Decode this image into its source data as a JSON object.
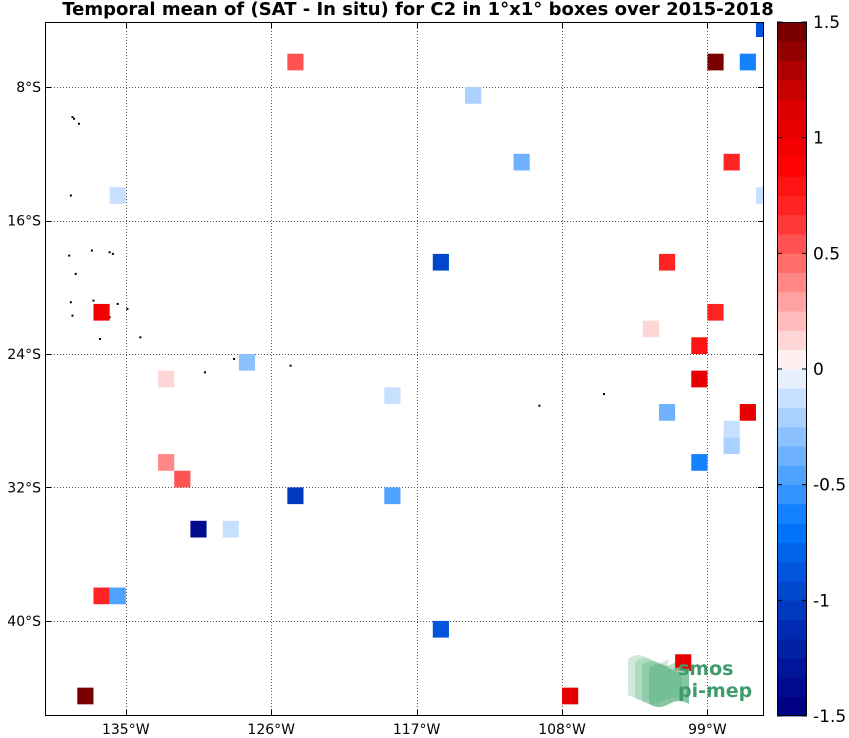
{
  "chart_data": {
    "type": "heatmap",
    "title": "Temporal mean of (SAT - In situ) for C2 in 1°x1° boxes over 2015-2018",
    "xlim": [
      -140,
      -95.5
    ],
    "ylim": [
      -45.7,
      -4.1
    ],
    "x_ticks": [
      {
        "value": -135,
        "label": "135°W"
      },
      {
        "value": -126,
        "label": "126°W"
      },
      {
        "value": -117,
        "label": "117°W"
      },
      {
        "value": -108,
        "label": "108°W"
      },
      {
        "value": -99,
        "label": "99°W"
      }
    ],
    "y_ticks": [
      {
        "value": -8,
        "label": "8°S"
      },
      {
        "value": -16,
        "label": "16°S"
      },
      {
        "value": -24,
        "label": "24°S"
      },
      {
        "value": -32,
        "label": "32°S"
      },
      {
        "value": -40,
        "label": "40°S"
      }
    ],
    "grid": true,
    "colorbar": {
      "min": -1.5,
      "max": 1.5,
      "levels": 36,
      "ticks": [
        {
          "value": 1.5,
          "label": "1.5"
        },
        {
          "value": 1,
          "label": "1"
        },
        {
          "value": 0.5,
          "label": "0.5"
        },
        {
          "value": 0,
          "label": "0"
        },
        {
          "value": -0.5,
          "label": "-0.5"
        },
        {
          "value": -1,
          "label": "-1"
        },
        {
          "value": -1.5,
          "label": "-1.5"
        }
      ]
    },
    "cells": [
      {
        "lon": -95.5,
        "lat": -4.5,
        "value": -0.9
      },
      {
        "lon": -124.5,
        "lat": -6.5,
        "value": 0.5
      },
      {
        "lon": -98.5,
        "lat": -6.5,
        "value": 1.45
      },
      {
        "lon": -96.5,
        "lat": -6.5,
        "value": -0.6
      },
      {
        "lon": -113.5,
        "lat": -8.5,
        "value": -0.25
      },
      {
        "lon": -97.5,
        "lat": -12.5,
        "value": 0.7
      },
      {
        "lon": -110.5,
        "lat": -12.5,
        "value": -0.35
      },
      {
        "lon": -135.5,
        "lat": -14.5,
        "value": -0.1
      },
      {
        "lon": -95.5,
        "lat": -14.5,
        "value": -0.1
      },
      {
        "lon": -115.5,
        "lat": -18.5,
        "value": -0.95
      },
      {
        "lon": -101.5,
        "lat": -18.5,
        "value": 0.7
      },
      {
        "lon": -136.5,
        "lat": -21.5,
        "value": 0.95
      },
      {
        "lon": -98.5,
        "lat": -21.5,
        "value": 0.7
      },
      {
        "lon": -102.5,
        "lat": -22.5,
        "value": 0.15
      },
      {
        "lon": -99.5,
        "lat": -23.5,
        "value": 0.8
      },
      {
        "lon": -127.5,
        "lat": -24.5,
        "value": -0.3
      },
      {
        "lon": -132.5,
        "lat": -25.5,
        "value": 0.15
      },
      {
        "lon": -99.5,
        "lat": -25.5,
        "value": 1.0
      },
      {
        "lon": -118.5,
        "lat": -26.5,
        "value": -0.15
      },
      {
        "lon": -101.5,
        "lat": -27.5,
        "value": -0.4
      },
      {
        "lon": -96.5,
        "lat": -27.5,
        "value": 1.0
      },
      {
        "lon": -97.5,
        "lat": -28.5,
        "value": -0.15
      },
      {
        "lon": -97.5,
        "lat": -29.5,
        "value": -0.25
      },
      {
        "lon": -99.5,
        "lat": -30.5,
        "value": -0.6
      },
      {
        "lon": -132.5,
        "lat": -30.5,
        "value": 0.35
      },
      {
        "lon": -131.5,
        "lat": -31.5,
        "value": 0.5
      },
      {
        "lon": -124.5,
        "lat": -32.5,
        "value": -1.05
      },
      {
        "lon": -118.5,
        "lat": -32.5,
        "value": -0.5
      },
      {
        "lon": -130.5,
        "lat": -34.5,
        "value": -1.4
      },
      {
        "lon": -128.5,
        "lat": -34.5,
        "value": -0.15
      },
      {
        "lon": -136.5,
        "lat": -38.5,
        "value": 0.7
      },
      {
        "lon": -135.5,
        "lat": -38.5,
        "value": -0.5
      },
      {
        "lon": -115.5,
        "lat": -40.5,
        "value": -0.9
      },
      {
        "lon": -100.5,
        "lat": -42.5,
        "value": 1.05
      },
      {
        "lon": -137.5,
        "lat": -44.5,
        "value": 1.5
      },
      {
        "lon": -107.5,
        "lat": -44.5,
        "value": 1.0
      }
    ],
    "islands": [
      {
        "lon": -138.3,
        "lat": -9.8
      },
      {
        "lon": -138.2,
        "lat": -9.9
      },
      {
        "lon": -137.9,
        "lat": -10.2
      },
      {
        "lon": -138.4,
        "lat": -14.5
      },
      {
        "lon": -138.5,
        "lat": -18.1
      },
      {
        "lon": -137.1,
        "lat": -17.8
      },
      {
        "lon": -136.0,
        "lat": -17.9
      },
      {
        "lon": -135.8,
        "lat": -18.0
      },
      {
        "lon": -138.1,
        "lat": -19.2
      },
      {
        "lon": -138.4,
        "lat": -20.9
      },
      {
        "lon": -137.0,
        "lat": -20.8
      },
      {
        "lon": -135.5,
        "lat": -21.0
      },
      {
        "lon": -134.9,
        "lat": -21.3
      },
      {
        "lon": -138.3,
        "lat": -21.7
      },
      {
        "lon": -136.0,
        "lat": -21.8
      },
      {
        "lon": -134.1,
        "lat": -23.0
      },
      {
        "lon": -136.6,
        "lat": -23.1
      },
      {
        "lon": -128.3,
        "lat": -24.3
      },
      {
        "lon": -130.1,
        "lat": -25.1
      },
      {
        "lon": -124.8,
        "lat": -24.7
      },
      {
        "lon": -109.4,
        "lat": -27.1
      },
      {
        "lon": -105.4,
        "lat": -26.4
      }
    ]
  },
  "watermark": {
    "line1": "smos",
    "line2": "pi-mep"
  }
}
